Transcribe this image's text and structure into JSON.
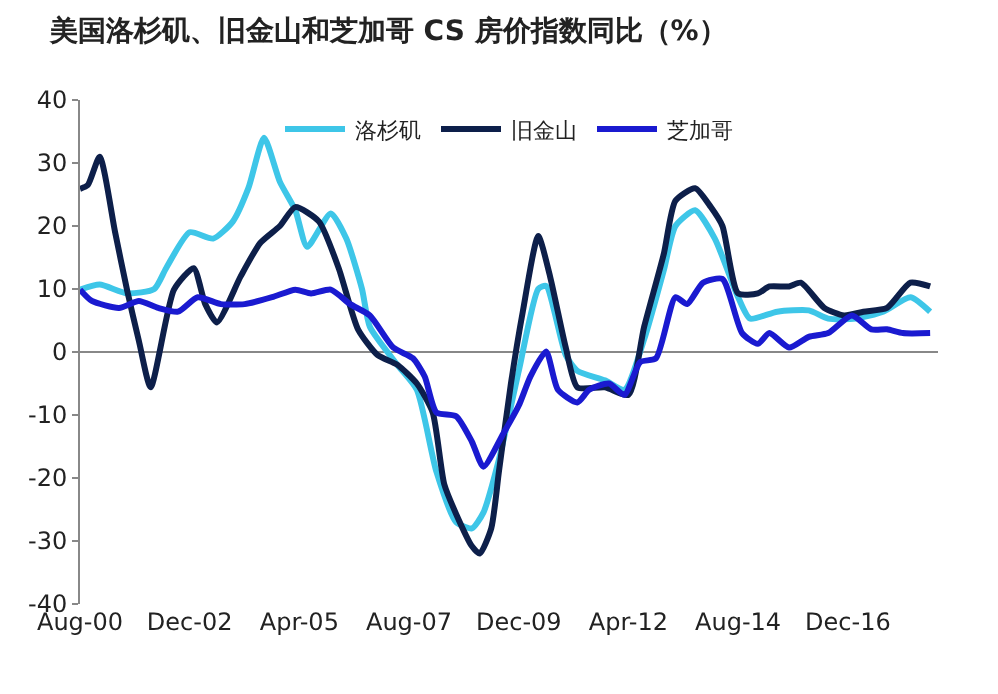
{
  "chart_data": {
    "type": "line",
    "title": "美国洛杉矶、旧金山和芝加哥 CS 房价指数同比（%）",
    "xlim": [
      "2000-08",
      "2018-11"
    ],
    "xticks": [
      {
        "value": "2000-08",
        "label": "Aug-00"
      },
      {
        "value": "2002-12",
        "label": "Dec-02"
      },
      {
        "value": "2005-04",
        "label": "Apr-05"
      },
      {
        "value": "2007-08",
        "label": "Aug-07"
      },
      {
        "value": "2009-12",
        "label": "Dec-09"
      },
      {
        "value": "2012-04",
        "label": "Apr-12"
      },
      {
        "value": "2014-08",
        "label": "Aug-14"
      },
      {
        "value": "2016-12",
        "label": "Dec-16"
      }
    ],
    "ylim": [
      -40,
      40
    ],
    "yticks": [
      -40,
      -30,
      -20,
      -10,
      0,
      10,
      20,
      30,
      40
    ],
    "grid": false,
    "legend": "top",
    "ref_lines": [
      {
        "axis": "y",
        "value": 0,
        "color": "#888888"
      }
    ],
    "series": [
      {
        "name": "洛杉矶",
        "color": "#3ec6e8",
        "x": [
          "2000-08",
          "2001-01",
          "2001-08",
          "2002-03",
          "2002-06",
          "2002-12",
          "2003-06",
          "2003-11",
          "2004-03",
          "2004-07",
          "2004-11",
          "2005-03",
          "2005-06",
          "2005-12",
          "2006-04",
          "2006-08",
          "2006-10",
          "2007-05",
          "2007-10",
          "2008-03",
          "2008-08",
          "2008-12",
          "2009-03",
          "2009-07",
          "2009-12",
          "2010-05",
          "2010-07",
          "2010-12",
          "2011-03",
          "2011-10",
          "2012-03",
          "2012-08",
          "2013-01",
          "2013-04",
          "2013-09",
          "2014-02",
          "2014-08",
          "2014-11",
          "2015-06",
          "2016-02",
          "2016-07",
          "2017-02",
          "2017-09",
          "2018-04",
          "2018-09"
        ],
        "values": [
          9.9,
          10.7,
          9.3,
          10,
          13.3,
          19,
          18,
          20.7,
          26,
          34,
          27,
          22.5,
          16.7,
          22,
          18,
          10,
          4,
          -2,
          -6,
          -19,
          -27,
          -28,
          -25.5,
          -17,
          -3,
          10,
          10.5,
          -0.5,
          -3,
          -4.5,
          -6,
          2,
          13,
          20,
          22.5,
          18,
          8.7,
          5.3,
          6.4,
          6.6,
          5.3,
          5.3,
          6.4,
          8.7,
          6.4
        ]
      },
      {
        "name": "旧金山",
        "color": "#0d1f4a",
        "x": [
          "2000-08",
          "2000-10",
          "2001-01",
          "2001-05",
          "2001-08",
          "2001-11",
          "2002-02",
          "2002-08",
          "2003-01",
          "2003-04",
          "2003-07",
          "2004-01",
          "2004-06",
          "2004-11",
          "2005-03",
          "2005-09",
          "2006-02",
          "2006-07",
          "2006-12",
          "2007-05",
          "2007-10",
          "2008-02",
          "2008-05",
          "2008-08",
          "2008-12",
          "2009-02",
          "2009-05",
          "2009-07",
          "2009-10",
          "2010-01",
          "2010-05",
          "2010-08",
          "2010-12",
          "2011-03",
          "2011-10",
          "2012-04",
          "2012-08",
          "2013-01",
          "2013-04",
          "2013-09",
          "2014-01",
          "2014-04",
          "2014-08",
          "2015-01",
          "2015-04",
          "2015-09",
          "2015-12",
          "2016-06",
          "2016-11",
          "2017-04",
          "2017-10",
          "2018-04",
          "2018-09"
        ],
        "values": [
          25.9,
          26.5,
          31,
          19,
          9.9,
          1.8,
          -5.6,
          9.9,
          13.3,
          7.6,
          4.7,
          12,
          17.3,
          20,
          23,
          20.7,
          13.3,
          3.6,
          -0.5,
          -2,
          -5,
          -9.6,
          -21,
          -25.7,
          -30.8,
          -32,
          -28,
          -18.8,
          -5,
          6.4,
          18.4,
          12,
          0.7,
          -5.6,
          -5.6,
          -6.8,
          4,
          15.6,
          24,
          26,
          23,
          20,
          9.3,
          9.3,
          10.4,
          10.4,
          11,
          7,
          5.8,
          6.4,
          7,
          11,
          10.4
        ]
      },
      {
        "name": "芝加哥",
        "color": "#1a1ad0",
        "x": [
          "2000-08",
          "2000-11",
          "2001-06",
          "2001-11",
          "2002-04",
          "2002-09",
          "2003-02",
          "2003-08",
          "2004-02",
          "2004-09",
          "2005-03",
          "2005-07",
          "2005-12",
          "2006-05",
          "2006-10",
          "2007-04",
          "2007-09",
          "2007-12",
          "2008-03",
          "2008-08",
          "2008-12",
          "2009-03",
          "2009-08",
          "2009-12",
          "2010-03",
          "2010-07",
          "2010-10",
          "2011-03",
          "2011-06",
          "2011-11",
          "2012-03",
          "2012-07",
          "2012-11",
          "2013-04",
          "2013-07",
          "2013-11",
          "2014-04",
          "2014-09",
          "2015-01",
          "2015-04",
          "2015-09",
          "2016-02",
          "2016-07",
          "2017-01",
          "2017-06",
          "2017-10",
          "2018-02",
          "2018-09"
        ],
        "values": [
          9.9,
          8.1,
          7,
          8.1,
          7,
          6.4,
          8.7,
          7.6,
          7.6,
          8.7,
          9.9,
          9.3,
          9.9,
          7.6,
          5.8,
          0.7,
          -1,
          -3.9,
          -9.6,
          -10.2,
          -14.2,
          -18.2,
          -13,
          -8.5,
          -3.9,
          0.1,
          -6,
          -8,
          -6,
          -5,
          -6.8,
          -1.6,
          -1,
          8.7,
          7.6,
          11,
          11.6,
          3,
          1.3,
          3,
          0.7,
          2.4,
          3,
          5.8,
          3.6,
          3.6,
          3,
          3
        ]
      }
    ]
  }
}
